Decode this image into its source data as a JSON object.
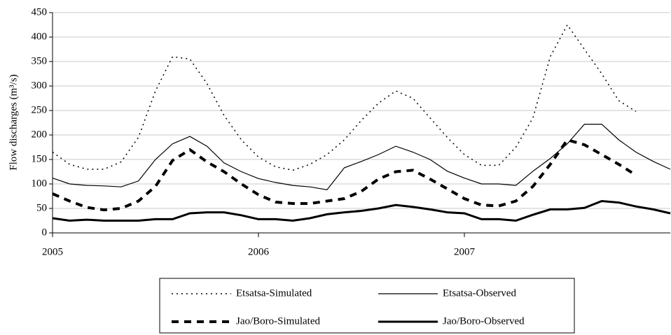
{
  "chart_data": {
    "type": "line",
    "ylabel": "Flow discharges (m³/s)",
    "x": [
      2005,
      2005.083,
      2005.167,
      2005.25,
      2005.333,
      2005.417,
      2005.5,
      2005.583,
      2005.667,
      2005.75,
      2005.833,
      2005.917,
      2006,
      2006.083,
      2006.167,
      2006.25,
      2006.333,
      2006.417,
      2006.5,
      2006.583,
      2006.667,
      2006.75,
      2006.833,
      2006.917,
      2007,
      2007.083,
      2007.167,
      2007.25,
      2007.333,
      2007.417,
      2007.5,
      2007.583,
      2007.667,
      2007.75,
      2007.833,
      2007.917,
      2008
    ],
    "series": [
      {
        "name": "Etsatsa-Simulated",
        "color": "#000000",
        "dash": "dotted",
        "width": 1.5,
        "values": [
          165,
          140,
          130,
          130,
          145,
          195,
          290,
          360,
          355,
          305,
          240,
          190,
          155,
          135,
          128,
          140,
          160,
          190,
          230,
          265,
          290,
          275,
          235,
          195,
          160,
          138,
          138,
          175,
          235,
          360,
          425,
          375,
          325,
          270,
          248,
          null,
          null
        ]
      },
      {
        "name": "Etsatsa-Observed",
        "color": "#000000",
        "dash": "solid",
        "width": 1.2,
        "values": [
          112,
          100,
          97,
          96,
          94,
          106,
          150,
          182,
          197,
          177,
          143,
          125,
          111,
          103,
          97,
          94,
          88,
          133,
          146,
          160,
          177,
          165,
          150,
          126,
          112,
          100,
          100,
          97,
          126,
          152,
          182,
          222,
          222,
          190,
          165,
          146,
          130
        ]
      },
      {
        "name": "Jao/Boro-Simulated",
        "color": "#000000",
        "dash": "dashed",
        "width": 4,
        "values": [
          80,
          65,
          52,
          47,
          50,
          65,
          95,
          148,
          170,
          145,
          125,
          100,
          78,
          63,
          60,
          60,
          65,
          70,
          85,
          110,
          125,
          128,
          110,
          90,
          70,
          57,
          55,
          65,
          95,
          140,
          190,
          180,
          160,
          140,
          118,
          null,
          null
        ]
      },
      {
        "name": "Jao/Boro-Observed",
        "color": "#000000",
        "dash": "solid",
        "width": 3,
        "values": [
          30,
          25,
          27,
          25,
          25,
          25,
          28,
          28,
          40,
          42,
          42,
          36,
          28,
          28,
          25,
          30,
          38,
          42,
          45,
          50,
          57,
          53,
          48,
          42,
          40,
          28,
          28,
          25,
          37,
          48,
          48,
          51,
          65,
          62,
          54,
          48,
          40
        ]
      }
    ],
    "xlim": [
      2005,
      2008
    ],
    "xticks": [
      2005,
      2006,
      2007
    ],
    "ylim": [
      0,
      450
    ],
    "yticks": [
      0,
      50,
      100,
      150,
      200,
      250,
      300,
      350,
      400,
      450
    ],
    "grid": true,
    "legend": "bottom"
  }
}
